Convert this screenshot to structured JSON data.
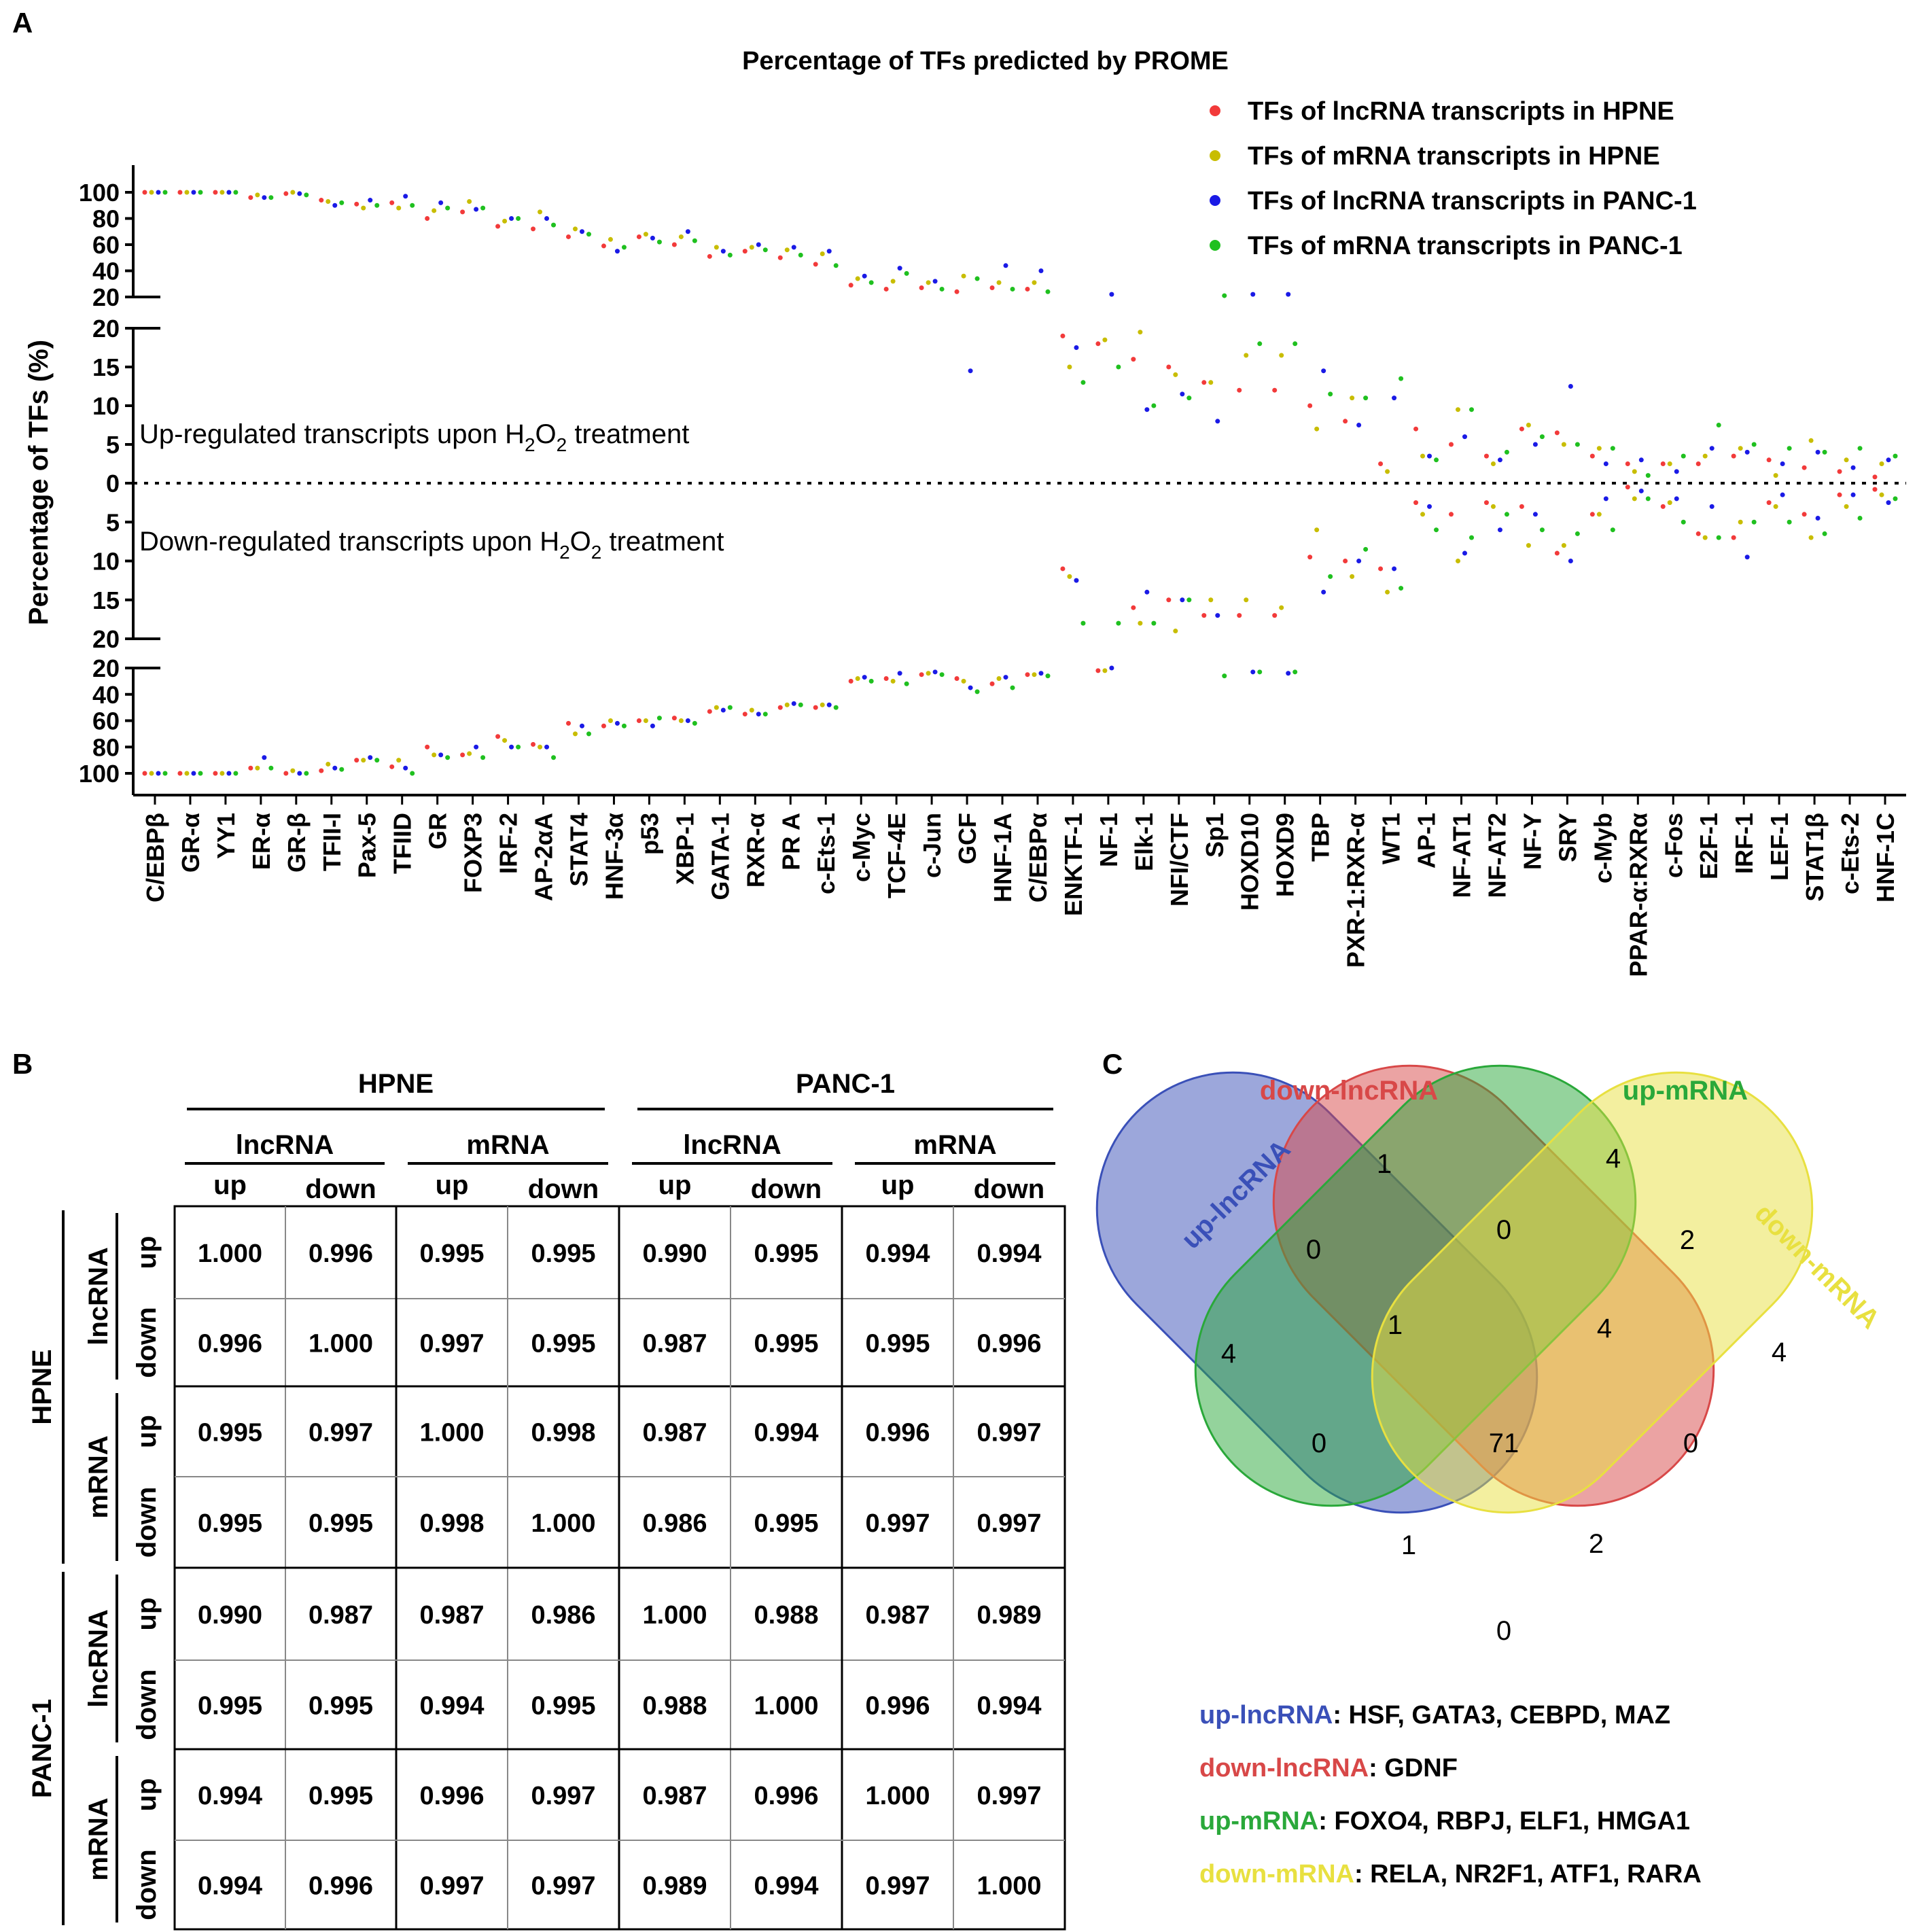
{
  "panels": {
    "a": "A",
    "b": "B",
    "c": "C"
  },
  "chart_data": [
    {
      "type": "scatter",
      "title": "Percentage of TFs predicted by PROME",
      "ylabel": "Percentage of TFs (%)",
      "y_axis_segments": [
        {
          "side": "up",
          "range": [
            20,
            100
          ],
          "ticks": [
            "100",
            "80",
            "60",
            "40",
            "20"
          ]
        },
        {
          "side": "up",
          "range": [
            0,
            20
          ],
          "ticks": [
            "20",
            "15",
            "10",
            "5",
            "0"
          ]
        },
        {
          "side": "down",
          "range": [
            0,
            20
          ],
          "ticks": [
            "5",
            "10",
            "15",
            "20"
          ]
        },
        {
          "side": "down",
          "range": [
            20,
            100
          ],
          "ticks": [
            "20",
            "40",
            "60",
            "80",
            "100"
          ]
        }
      ],
      "annotations": {
        "up": "Up-regulated transcripts upon H2O2 treatment",
        "up_parts": [
          "Up-regulated transcripts upon H",
          "2",
          "O",
          "2",
          " treatment"
        ],
        "down": "Down-regulated transcripts upon H2O2 treatment",
        "down_parts": [
          "Down-regulated transcripts upon H",
          "2",
          "O",
          "2",
          " treatment"
        ]
      },
      "legend": {
        "position": "top-right",
        "entries": [
          {
            "label": "TFs of lncRNA transcripts in HPNE",
            "color": "#f23a3a"
          },
          {
            "label": "TFs of mRNA transcripts in HPNE",
            "color": "#c8bd00"
          },
          {
            "label": "TFs of lncRNA transcripts in PANC-1",
            "color": "#1a1ae6"
          },
          {
            "label": "TFs of mRNA transcripts in PANC-1",
            "color": "#1fc01f"
          }
        ]
      },
      "categories": [
        "C/EBPβ",
        "GR-α",
        "YY1",
        "ER-α",
        "GR-β",
        "TFII-I",
        "Pax-5",
        "TFIID",
        "GR",
        "FOXP3",
        "IRF-2",
        "AP-2αA",
        "STAT4",
        "HNF-3α",
        "p53",
        "XBP-1",
        "GATA-1",
        "RXR-α",
        "PR A",
        "c-Ets-1",
        "c-Myc",
        "TCF-4E",
        "c-Jun",
        "GCF",
        "HNF-1A",
        "C/EBPα",
        "ENKTF-1",
        "NF-1",
        "Elk-1",
        "NFI/CTF",
        "Sp1",
        "HOXD10",
        "HOXD9",
        "TBP",
        "PXR-1:RXR-α",
        "WT1",
        "AP-1",
        "NF-AT1",
        "NF-AT2",
        "NF-Y",
        "SRY",
        "c-Myb",
        "PPAR-α:RXRα",
        "c-Fos",
        "E2F-1",
        "IRF-1",
        "LEF-1",
        "STAT1β",
        "c-Ets-2",
        "HNF-1C"
      ],
      "up_series": {
        "lncRNA_HPNE": [
          100,
          100,
          100,
          96,
          99,
          94,
          91,
          92,
          80,
          85,
          74,
          72,
          66,
          59,
          66,
          60,
          51,
          55,
          50,
          45,
          29,
          26,
          27,
          24,
          27,
          26,
          19,
          18,
          16,
          15,
          13,
          12,
          12,
          10,
          8,
          2.5,
          7,
          5,
          3.5,
          7,
          6.5,
          3.5,
          2.5,
          2.5,
          2.5,
          3.5,
          3,
          2,
          1.5,
          0.8
        ],
        "mRNA_HPNE": [
          100,
          100,
          100,
          98,
          100,
          93,
          88,
          88,
          86,
          93,
          78,
          85,
          72,
          64,
          68,
          66,
          58,
          58,
          56,
          53,
          34,
          32,
          31,
          36,
          31,
          31,
          15,
          18.5,
          19.5,
          14,
          13,
          16.5,
          16.5,
          7,
          11,
          1.5,
          3.5,
          9.5,
          2.5,
          7.5,
          5,
          4.5,
          1.5,
          2.5,
          3.5,
          4.5,
          1,
          5.5,
          3,
          2.5
        ],
        "lncRNA_PANC1": [
          100,
          100,
          100,
          96,
          99,
          90,
          94,
          97,
          92,
          87,
          80,
          80,
          70,
          55,
          65,
          70,
          55,
          60,
          58,
          55,
          36,
          42,
          32,
          14.5,
          44,
          40,
          17.5,
          22,
          9.5,
          11.5,
          8,
          22,
          22,
          14.5,
          7.5,
          11,
          3.5,
          6,
          3,
          5,
          12.5,
          2.5,
          3,
          1.5,
          4.5,
          4,
          2.5,
          4,
          2,
          3
        ],
        "mRNA_PANC1": [
          100,
          100,
          100,
          96,
          98,
          92,
          90,
          90,
          88,
          88,
          80,
          75,
          68,
          58,
          62,
          63,
          52,
          56,
          52,
          44,
          31,
          38,
          26,
          34,
          26,
          24,
          13,
          15,
          10,
          11,
          21,
          18,
          18,
          11.5,
          11,
          13.5,
          3,
          9.5,
          4,
          6,
          5,
          4.5,
          1,
          3.5,
          7.5,
          5,
          4.5,
          4,
          4.5,
          3.5
        ]
      },
      "down_series": {
        "lncRNA_HPNE": [
          100,
          100,
          100,
          96,
          100,
          98,
          90,
          95,
          80,
          86,
          72,
          78,
          62,
          64,
          60,
          58,
          53,
          55,
          50,
          50,
          30,
          28,
          25,
          28,
          32,
          25,
          11,
          22,
          16,
          15,
          17,
          17,
          17,
          9.5,
          10,
          11,
          2.5,
          4,
          2.5,
          3,
          9,
          4,
          0.5,
          3,
          6.5,
          7,
          2.5,
          4,
          1.5,
          0.8
        ],
        "mRNA_HPNE": [
          100,
          100,
          100,
          96,
          98,
          93,
          90,
          90,
          86,
          85,
          75,
          80,
          70,
          60,
          60,
          60,
          50,
          52,
          48,
          48,
          28,
          30,
          24,
          30,
          28,
          25,
          12,
          22,
          18,
          19,
          15,
          15,
          16,
          6,
          12,
          14,
          4,
          10,
          3,
          8,
          8,
          4,
          2,
          2.5,
          7,
          5,
          3,
          7,
          3,
          1.5
        ],
        "lncRNA_PANC1": [
          100,
          100,
          100,
          88,
          100,
          96,
          88,
          96,
          86,
          80,
          80,
          80,
          64,
          62,
          64,
          60,
          52,
          55,
          47,
          48,
          27,
          24,
          23,
          35,
          27,
          24,
          12.5,
          20,
          14,
          15,
          17,
          23,
          24,
          14,
          10,
          11,
          3,
          9,
          6,
          4,
          10,
          2,
          1,
          2,
          3,
          9.5,
          1.5,
          4.5,
          1.5,
          2.5
        ],
        "mRNA_PANC1": [
          100,
          100,
          100,
          96,
          100,
          97,
          90,
          100,
          88,
          88,
          80,
          88,
          70,
          64,
          58,
          62,
          50,
          55,
          48,
          50,
          30,
          32,
          25,
          38,
          35,
          26,
          18,
          18,
          18,
          15,
          26,
          23,
          23,
          12,
          8.5,
          13.5,
          6,
          7,
          4,
          6,
          6.5,
          6,
          2,
          5,
          7,
          5,
          5,
          6.5,
          4.5,
          2
        ]
      }
    },
    {
      "type": "table",
      "group_headers": [
        "HPNE",
        "PANC-1"
      ],
      "sub_headers": [
        "lncRNA",
        "mRNA",
        "lncRNA",
        "mRNA"
      ],
      "col_labels": [
        "up",
        "down",
        "up",
        "down",
        "up",
        "down",
        "up",
        "down"
      ],
      "row_groups": [
        "HPNE",
        "PANC-1"
      ],
      "row_sub": [
        "lncRNA",
        "mRNA",
        "lncRNA",
        "mRNA"
      ],
      "row_labels": [
        "up",
        "down",
        "up",
        "down",
        "up",
        "down",
        "up",
        "down"
      ],
      "values": [
        [
          "1.000",
          "0.996",
          "0.995",
          "0.995",
          "0.990",
          "0.995",
          "0.994",
          "0.994"
        ],
        [
          "0.996",
          "1.000",
          "0.997",
          "0.995",
          "0.987",
          "0.995",
          "0.995",
          "0.996"
        ],
        [
          "0.995",
          "0.997",
          "1.000",
          "0.998",
          "0.987",
          "0.994",
          "0.996",
          "0.997"
        ],
        [
          "0.995",
          "0.995",
          "0.998",
          "1.000",
          "0.986",
          "0.995",
          "0.997",
          "0.997"
        ],
        [
          "0.990",
          "0.987",
          "0.987",
          "0.986",
          "1.000",
          "0.988",
          "0.987",
          "0.989"
        ],
        [
          "0.995",
          "0.995",
          "0.994",
          "0.995",
          "0.988",
          "1.000",
          "0.996",
          "0.994"
        ],
        [
          "0.994",
          "0.995",
          "0.996",
          "0.997",
          "0.987",
          "0.996",
          "1.000",
          "0.997"
        ],
        [
          "0.994",
          "0.996",
          "0.997",
          "0.997",
          "0.989",
          "0.994",
          "0.997",
          "1.000"
        ]
      ]
    },
    {
      "type": "venn",
      "sets": [
        {
          "label": "up-lncRNA",
          "color": "#3a50b8"
        },
        {
          "label": "down-lncRNA",
          "color": "#d84848"
        },
        {
          "label": "up-mRNA",
          "color": "#2aa83a"
        },
        {
          "label": "down-mRNA",
          "color": "#e8e040"
        }
      ],
      "counts": {
        "ul": "4",
        "dl": "1",
        "um": "4",
        "dm": "4",
        "ul_dl": "0",
        "dl_um": "0",
        "um_dm": "2",
        "ul_dl_um": "1",
        "dl_um_dm": "4",
        "all": "71",
        "ul_um": "0",
        "dl_dm": "0",
        "ul_um_dm": "1",
        "ul_dl_dm": "2",
        "ul_dm": "0"
      },
      "unique_lists": [
        {
          "set": "up-lncRNA",
          "genes": ": HSF, GATA3, CEBPD, MAZ"
        },
        {
          "set": "down-lncRNA",
          "genes": ": GDNF"
        },
        {
          "set": "up-mRNA",
          "genes": ": FOXO4, RBPJ, ELF1, HMGA1"
        },
        {
          "set": "down-mRNA",
          "genes": ": RELA, NR2F1, ATF1, RARA"
        }
      ]
    }
  ]
}
